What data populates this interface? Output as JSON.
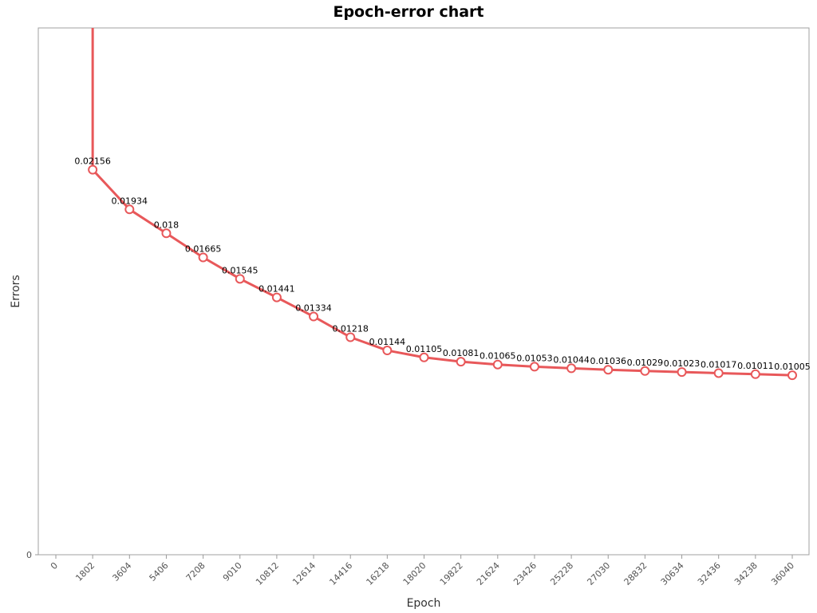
{
  "colors": {
    "series": "#e8585a",
    "marker_fill": "#ffffff",
    "plot_border": "#a0a0a0",
    "background": "#ffffff"
  },
  "chart_data": {
    "type": "line",
    "title": "Epoch-error chart",
    "xlabel": "Epoch",
    "ylabel": "Errors",
    "x_ticks": [
      0,
      1802,
      3604,
      5406,
      7208,
      9010,
      10812,
      12614,
      14416,
      16218,
      18020,
      19822,
      21624,
      23426,
      25228,
      27030,
      28832,
      30634,
      32436,
      34238,
      36040
    ],
    "y_ticks": [
      0
    ],
    "ylim": [
      0,
      0.0295
    ],
    "grid": false,
    "legend": "none",
    "initial_point": {
      "x": 0,
      "y": 0.03,
      "note_offscale": true
    },
    "series": [
      {
        "x": [
          1802,
          3604,
          5406,
          7208,
          9010,
          10812,
          12614,
          14416,
          16218,
          18020,
          19822,
          21624,
          23426,
          25228,
          27030,
          28832,
          30634,
          32436,
          34238,
          36040
        ],
        "values": [
          0.02156,
          0.01934,
          0.018,
          0.01665,
          0.01545,
          0.01441,
          0.01334,
          0.01218,
          0.01144,
          0.01105,
          0.01081,
          0.01065,
          0.01053,
          0.01044,
          0.01036,
          0.01029,
          0.01023,
          0.01017,
          0.01011,
          0.01005
        ],
        "labels": [
          "0.02156",
          "0.01934",
          "0.018",
          "0.01665",
          "0.01545",
          "0.01441",
          "0.01334",
          "0.01218",
          "0.01144",
          "0.01105",
          "0.01081",
          "0.01065",
          "0.01053",
          "0.01044",
          "0.01036",
          "0.01029",
          "0.01023",
          "0.01017",
          "0.01011",
          "0.01005"
        ]
      }
    ]
  }
}
